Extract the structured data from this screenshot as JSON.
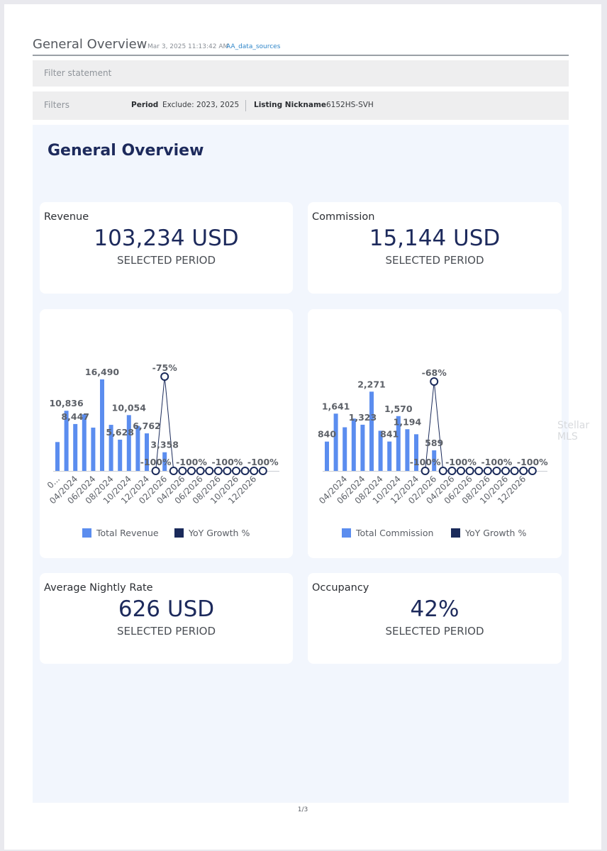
{
  "header": {
    "title": "General Overview",
    "timestamp": "Mar 3, 2025 11:13:42 AM",
    "source": "AA_data_sources"
  },
  "filter_statement": {
    "label": "Filter statement"
  },
  "filters": {
    "label": "Filters",
    "items": [
      {
        "key": "Period",
        "value": "Exclude: 2023, 2025"
      },
      {
        "key": "Listing Nickname",
        "value": "6152HS-SVH"
      }
    ]
  },
  "panel": {
    "title": "General Overview"
  },
  "kpis": {
    "revenue": {
      "label": "Revenue",
      "value": "103,234 USD",
      "sub": "SELECTED PERIOD"
    },
    "commission": {
      "label": "Commission",
      "value": "15,144 USD",
      "sub": "SELECTED PERIOD"
    },
    "nightly": {
      "label": "Average Nightly Rate",
      "value": "626 USD",
      "sub": "SELECTED PERIOD"
    },
    "occupancy": {
      "label": "Occupancy",
      "value": "42%",
      "sub": "SELECTED PERIOD"
    }
  },
  "colors": {
    "bar": "#5b8def",
    "line": "#1a2a5a",
    "navy": "#1d2a5c"
  },
  "watermark": "Stellar MLS",
  "page_number": "1/3",
  "chart_data": [
    {
      "type": "bar",
      "series": [
        {
          "name": "Total Revenue",
          "values": [
            5200,
            10836,
            8447,
            10200,
            7800,
            16490,
            8300,
            5628,
            10054,
            8100,
            6762,
            0,
            3358
          ]
        },
        {
          "name": "YoY Growth %",
          "values": [
            null,
            null,
            null,
            null,
            null,
            null,
            null,
            null,
            null,
            null,
            null,
            -100,
            -75,
            -100,
            -100,
            -100,
            -100,
            -100,
            -100,
            -100,
            -100,
            -100,
            -100,
            -100
          ]
        }
      ],
      "bar_labels": [
        {
          "index": 1,
          "text": "10,836"
        },
        {
          "index": 2,
          "text": "8,447"
        },
        {
          "index": 5,
          "text": "16,490"
        },
        {
          "index": 7,
          "text": "5,628"
        },
        {
          "index": 8,
          "text": "10,054"
        },
        {
          "index": 10,
          "text": "6,762"
        },
        {
          "index": 12,
          "text": "3,358"
        }
      ],
      "line_labels": [
        {
          "index": 11,
          "text": "-100%"
        },
        {
          "index": 12,
          "text": "-75%"
        },
        {
          "index": 15,
          "text": "-100%"
        },
        {
          "index": 19,
          "text": "-100%"
        },
        {
          "index": 23,
          "text": "-100%"
        }
      ],
      "x_ticks": [
        {
          "index": 0,
          "text": "0..."
        },
        {
          "index": 2,
          "text": "04/2024"
        },
        {
          "index": 4,
          "text": "06/2024"
        },
        {
          "index": 6,
          "text": "08/2024"
        },
        {
          "index": 8,
          "text": "10/2024"
        },
        {
          "index": 10,
          "text": "12/2024"
        },
        {
          "index": 12,
          "text": "02/2026"
        },
        {
          "index": 14,
          "text": "04/2026"
        },
        {
          "index": 16,
          "text": "06/2026"
        },
        {
          "index": 18,
          "text": "08/2026"
        },
        {
          "index": 20,
          "text": "10/2026"
        },
        {
          "index": 22,
          "text": "12/2026"
        }
      ],
      "ylim": [
        0,
        17000
      ],
      "y2lim": [
        -100,
        -75
      ]
    },
    {
      "type": "bar",
      "series": [
        {
          "name": "Total Commission",
          "values": [
            840,
            1641,
            1250,
            1500,
            1323,
            2271,
            1150,
            841,
            1570,
            1194,
            1050,
            0,
            589
          ]
        },
        {
          "name": "YoY Growth %",
          "values": [
            null,
            null,
            null,
            null,
            null,
            null,
            null,
            null,
            null,
            null,
            null,
            -100,
            -68,
            -100,
            -100,
            -100,
            -100,
            -100,
            -100,
            -100,
            -100,
            -100,
            -100,
            -100
          ]
        }
      ],
      "bar_labels": [
        {
          "index": 0,
          "text": "840"
        },
        {
          "index": 1,
          "text": "1,641"
        },
        {
          "index": 4,
          "text": "1,323"
        },
        {
          "index": 5,
          "text": "2,271"
        },
        {
          "index": 7,
          "text": "841"
        },
        {
          "index": 8,
          "text": "1,570"
        },
        {
          "index": 9,
          "text": "1,194"
        },
        {
          "index": 12,
          "text": "589"
        }
      ],
      "line_labels": [
        {
          "index": 11,
          "text": "-100%"
        },
        {
          "index": 12,
          "text": "-68%"
        },
        {
          "index": 15,
          "text": "-100%"
        },
        {
          "index": 19,
          "text": "-100%"
        },
        {
          "index": 23,
          "text": "-100%"
        }
      ],
      "x_ticks": [
        {
          "index": 0,
          "text": "04/2024"
        },
        {
          "index": 2,
          "text": "06/2024"
        },
        {
          "index": 4,
          "text": "08/2024"
        },
        {
          "index": 6,
          "text": "10/2024"
        },
        {
          "index": 8,
          "text": "12/2024"
        },
        {
          "index": 10,
          "text": "02/2026"
        },
        {
          "index": 12,
          "text": "04/2026"
        },
        {
          "index": 14,
          "text": "06/2026"
        },
        {
          "index": 16,
          "text": "08/2026"
        },
        {
          "index": 18,
          "text": "10/2026"
        },
        {
          "index": 20,
          "text": "12/2026"
        }
      ],
      "x_tick_offset": 2,
      "ylim": [
        0,
        2500
      ],
      "y2lim": [
        -100,
        -68
      ]
    }
  ]
}
